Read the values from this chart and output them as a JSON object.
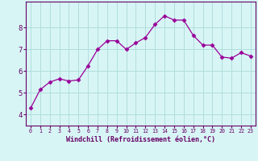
{
  "x": [
    0,
    1,
    2,
    3,
    4,
    5,
    6,
    7,
    8,
    9,
    10,
    11,
    12,
    13,
    14,
    15,
    16,
    17,
    18,
    19,
    20,
    21,
    22,
    23
  ],
  "y": [
    4.3,
    5.15,
    5.5,
    5.65,
    5.55,
    5.6,
    6.25,
    7.0,
    7.4,
    7.4,
    7.0,
    7.3,
    7.55,
    8.15,
    8.55,
    8.35,
    8.35,
    7.65,
    7.2,
    7.2,
    6.65,
    6.6,
    6.85,
    6.7
  ],
  "line_color": "#990099",
  "marker": "D",
  "marker_size": 2.5,
  "bg_color": "#d8f5f5",
  "grid_color": "#b0dede",
  "xlabel": "Windchill (Refroidissement éolien,°C)",
  "xlabel_color": "#660066",
  "tick_color": "#660066",
  "spine_color": "#660066",
  "ylim": [
    3.5,
    9.2
  ],
  "xlim": [
    -0.5,
    23.5
  ],
  "yticks": [
    4,
    5,
    6,
    7,
    8
  ],
  "xtick_labels": [
    "0",
    "1",
    "2",
    "3",
    "4",
    "5",
    "6",
    "7",
    "8",
    "9",
    "10",
    "11",
    "12",
    "13",
    "14",
    "15",
    "16",
    "17",
    "18",
    "19",
    "20",
    "21",
    "22",
    "23"
  ],
  "xlabel_fontsize": 6.0,
  "xtick_fontsize": 4.8,
  "ytick_fontsize": 6.5
}
